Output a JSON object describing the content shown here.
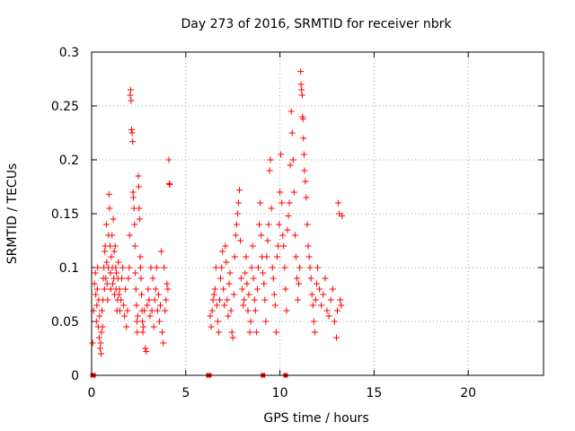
{
  "chart_data": {
    "type": "scatter",
    "title": "Day 273 of 2016, SRMTID for receiver nbrk",
    "xlabel": "GPS time / hours",
    "ylabel": "SRMTID / TECUs",
    "xlim": [
      0,
      24
    ],
    "ylim": [
      0,
      0.3
    ],
    "xticks": [
      0,
      5,
      10,
      15,
      20
    ],
    "xtick_labels": [
      "0",
      "5",
      "10",
      "15",
      "20"
    ],
    "yticks": [
      0,
      0.05,
      0.1,
      0.15,
      0.2,
      0.25,
      0.3
    ],
    "ytick_labels": [
      "0",
      "0.05",
      "0.1",
      "0.15",
      "0.2",
      "0.25",
      "0.3"
    ],
    "grid": true,
    "marker_color": "#ff0000",
    "series": [
      {
        "name": "SRMTID",
        "marker": "plus",
        "points": [
          [
            0.05,
            0.03
          ],
          [
            0.1,
            0.06
          ],
          [
            0.15,
            0.085
          ],
          [
            0.2,
            0.095
          ],
          [
            0.22,
            0.075
          ],
          [
            0.25,
            0.05
          ],
          [
            0.28,
            0.065
          ],
          [
            0.3,
            0.08
          ],
          [
            0.32,
            0.1
          ],
          [
            0.35,
            0.045
          ],
          [
            0.38,
            0.07
          ],
          [
            0.4,
            0.035
          ],
          [
            0.42,
            0.055
          ],
          [
            0.45,
            0.025
          ],
          [
            0.48,
            0.03
          ],
          [
            0.5,
            0.02
          ],
          [
            0.52,
            0.04
          ],
          [
            0.55,
            0.06
          ],
          [
            0.58,
            0.045
          ],
          [
            0.6,
            0.07
          ],
          [
            0.62,
            0.09
          ],
          [
            0.65,
            0.1
          ],
          [
            0.68,
            0.08
          ],
          [
            0.7,
            0.115
          ],
          [
            0.72,
            0.12
          ],
          [
            0.75,
            0.09
          ],
          [
            0.78,
            0.14
          ],
          [
            0.8,
            0.105
          ],
          [
            0.82,
            0.085
          ],
          [
            0.85,
            0.07
          ],
          [
            0.88,
            0.1
          ],
          [
            0.9,
            0.13
          ],
          [
            0.92,
            0.168
          ],
          [
            0.95,
            0.155
          ],
          [
            0.98,
            0.12
          ],
          [
            1.0,
            0.095
          ],
          [
            1.02,
            0.08
          ],
          [
            1.05,
            0.11
          ],
          [
            1.08,
            0.13
          ],
          [
            1.1,
            0.1
          ],
          [
            1.12,
            0.085
          ],
          [
            1.15,
            0.145
          ],
          [
            1.18,
            0.09
          ],
          [
            1.2,
            0.115
          ],
          [
            1.22,
            0.075
          ],
          [
            1.25,
            0.12
          ],
          [
            1.28,
            0.1
          ],
          [
            1.3,
            0.08
          ],
          [
            1.32,
            0.095
          ],
          [
            1.35,
            0.06
          ],
          [
            1.38,
            0.07
          ],
          [
            1.4,
            0.09
          ],
          [
            1.42,
            0.105
          ],
          [
            1.45,
            0.075
          ],
          [
            1.48,
            0.08
          ],
          [
            1.5,
            0.06
          ],
          [
            1.55,
            0.07
          ],
          [
            1.6,
            0.09
          ],
          [
            1.65,
            0.1
          ],
          [
            1.7,
            0.065
          ],
          [
            1.75,
            0.055
          ],
          [
            1.8,
            0.08
          ],
          [
            1.85,
            0.045
          ],
          [
            1.9,
            0.06
          ],
          [
            1.95,
            0.09
          ],
          [
            2.0,
            0.1
          ],
          [
            2.02,
            0.13
          ],
          [
            2.05,
            0.26
          ],
          [
            2.07,
            0.265
          ],
          [
            2.1,
            0.255
          ],
          [
            2.12,
            0.228
          ],
          [
            2.15,
            0.225
          ],
          [
            2.18,
            0.217
          ],
          [
            2.2,
            0.17
          ],
          [
            2.22,
            0.165
          ],
          [
            2.25,
            0.155
          ],
          [
            2.28,
            0.14
          ],
          [
            2.3,
            0.12
          ],
          [
            2.32,
            0.095
          ],
          [
            2.35,
            0.08
          ],
          [
            2.38,
            0.065
          ],
          [
            2.4,
            0.05
          ],
          [
            2.42,
            0.04
          ],
          [
            2.45,
            0.055
          ],
          [
            2.48,
            0.185
          ],
          [
            2.5,
            0.175
          ],
          [
            2.52,
            0.155
          ],
          [
            2.55,
            0.145
          ],
          [
            2.58,
            0.11
          ],
          [
            2.6,
            0.1
          ],
          [
            2.62,
            0.09
          ],
          [
            2.65,
            0.075
          ],
          [
            2.68,
            0.06
          ],
          [
            2.7,
            0.05
          ],
          [
            2.72,
            0.04
          ],
          [
            2.75,
            0.045
          ],
          [
            2.8,
            0.06
          ],
          [
            2.85,
            0.025
          ],
          [
            2.9,
            0.022
          ],
          [
            2.95,
            0.065
          ],
          [
            3.0,
            0.08
          ],
          [
            3.05,
            0.07
          ],
          [
            3.1,
            0.055
          ],
          [
            3.15,
            0.1
          ],
          [
            3.2,
            0.06
          ],
          [
            3.25,
            0.09
          ],
          [
            3.3,
            0.045
          ],
          [
            3.35,
            0.07
          ],
          [
            3.4,
            0.08
          ],
          [
            3.45,
            0.1
          ],
          [
            3.5,
            0.06
          ],
          [
            3.55,
            0.075
          ],
          [
            3.6,
            0.05
          ],
          [
            3.65,
            0.065
          ],
          [
            3.7,
            0.115
          ],
          [
            3.75,
            0.04
          ],
          [
            3.8,
            0.03
          ],
          [
            3.85,
            0.1
          ],
          [
            3.9,
            0.06
          ],
          [
            3.95,
            0.07
          ],
          [
            4.0,
            0.085
          ],
          [
            4.05,
            0.08
          ],
          [
            4.1,
            0.2
          ],
          [
            4.12,
            0.178
          ],
          [
            4.15,
            0.177
          ],
          [
            6.3,
            0.055
          ],
          [
            6.35,
            0.045
          ],
          [
            6.4,
            0.06
          ],
          [
            6.45,
            0.07
          ],
          [
            6.5,
            0.075
          ],
          [
            6.55,
            0.08
          ],
          [
            6.6,
            0.1
          ],
          [
            6.65,
            0.065
          ],
          [
            6.7,
            0.05
          ],
          [
            6.75,
            0.04
          ],
          [
            6.8,
            0.07
          ],
          [
            6.85,
            0.09
          ],
          [
            6.9,
            0.1
          ],
          [
            6.95,
            0.115
          ],
          [
            7.0,
            0.08
          ],
          [
            7.05,
            0.065
          ],
          [
            7.1,
            0.12
          ],
          [
            7.15,
            0.105
          ],
          [
            7.2,
            0.07
          ],
          [
            7.25,
            0.055
          ],
          [
            7.3,
            0.085
          ],
          [
            7.35,
            0.095
          ],
          [
            7.4,
            0.06
          ],
          [
            7.45,
            0.04
          ],
          [
            7.5,
            0.035
          ],
          [
            7.55,
            0.075
          ],
          [
            7.6,
            0.11
          ],
          [
            7.65,
            0.13
          ],
          [
            7.7,
            0.14
          ],
          [
            7.75,
            0.15
          ],
          [
            7.8,
            0.16
          ],
          [
            7.85,
            0.172
          ],
          [
            7.9,
            0.125
          ],
          [
            7.95,
            0.09
          ],
          [
            8.0,
            0.08
          ],
          [
            8.05,
            0.065
          ],
          [
            8.1,
            0.07
          ],
          [
            8.15,
            0.095
          ],
          [
            8.2,
            0.11
          ],
          [
            8.25,
            0.085
          ],
          [
            8.3,
            0.06
          ],
          [
            8.35,
            0.075
          ],
          [
            8.4,
            0.04
          ],
          [
            8.45,
            0.05
          ],
          [
            8.5,
            0.1
          ],
          [
            8.55,
            0.12
          ],
          [
            8.6,
            0.09
          ],
          [
            8.65,
            0.07
          ],
          [
            8.7,
            0.06
          ],
          [
            8.75,
            0.04
          ],
          [
            8.8,
            0.08
          ],
          [
            8.85,
            0.1
          ],
          [
            8.9,
            0.14
          ],
          [
            8.95,
            0.16
          ],
          [
            9.0,
            0.13
          ],
          [
            9.05,
            0.11
          ],
          [
            9.1,
            0.095
          ],
          [
            9.15,
            0.085
          ],
          [
            9.2,
            0.07
          ],
          [
            9.25,
            0.05
          ],
          [
            9.3,
            0.11
          ],
          [
            9.35,
            0.125
          ],
          [
            9.4,
            0.14
          ],
          [
            9.45,
            0.19
          ],
          [
            9.5,
            0.2
          ],
          [
            9.55,
            0.155
          ],
          [
            9.6,
            0.1
          ],
          [
            9.65,
            0.09
          ],
          [
            9.7,
            0.075
          ],
          [
            9.75,
            0.065
          ],
          [
            9.8,
            0.04
          ],
          [
            9.85,
            0.11
          ],
          [
            9.9,
            0.12
          ],
          [
            9.95,
            0.14
          ],
          [
            10.0,
            0.17
          ],
          [
            10.05,
            0.205
          ],
          [
            10.1,
            0.16
          ],
          [
            10.15,
            0.13
          ],
          [
            10.2,
            0.12
          ],
          [
            10.25,
            0.1
          ],
          [
            10.3,
            0.08
          ],
          [
            10.35,
            0.06
          ],
          [
            10.4,
            0.135
          ],
          [
            10.45,
            0.148
          ],
          [
            10.5,
            0.16
          ],
          [
            10.55,
            0.195
          ],
          [
            10.6,
            0.245
          ],
          [
            10.65,
            0.225
          ],
          [
            10.7,
            0.2
          ],
          [
            10.75,
            0.17
          ],
          [
            10.8,
            0.13
          ],
          [
            10.85,
            0.11
          ],
          [
            10.9,
            0.09
          ],
          [
            10.95,
            0.07
          ],
          [
            11.0,
            0.085
          ],
          [
            11.05,
            0.1
          ],
          [
            11.1,
            0.282
          ],
          [
            11.12,
            0.27
          ],
          [
            11.15,
            0.265
          ],
          [
            11.18,
            0.26
          ],
          [
            11.2,
            0.24
          ],
          [
            11.22,
            0.238
          ],
          [
            11.25,
            0.22
          ],
          [
            11.28,
            0.205
          ],
          [
            11.3,
            0.19
          ],
          [
            11.35,
            0.18
          ],
          [
            11.4,
            0.165
          ],
          [
            11.45,
            0.14
          ],
          [
            11.5,
            0.12
          ],
          [
            11.55,
            0.11
          ],
          [
            11.6,
            0.1
          ],
          [
            11.65,
            0.09
          ],
          [
            11.7,
            0.075
          ],
          [
            11.75,
            0.065
          ],
          [
            11.8,
            0.05
          ],
          [
            11.85,
            0.04
          ],
          [
            11.9,
            0.07
          ],
          [
            11.95,
            0.085
          ],
          [
            12.0,
            0.1
          ],
          [
            12.1,
            0.08
          ],
          [
            12.2,
            0.065
          ],
          [
            12.3,
            0.075
          ],
          [
            12.4,
            0.09
          ],
          [
            12.5,
            0.06
          ],
          [
            12.6,
            0.055
          ],
          [
            12.7,
            0.07
          ],
          [
            12.8,
            0.08
          ],
          [
            12.9,
            0.05
          ],
          [
            13.0,
            0.035
          ],
          [
            13.05,
            0.06
          ],
          [
            13.1,
            0.16
          ],
          [
            13.15,
            0.15
          ],
          [
            13.2,
            0.07
          ],
          [
            13.25,
            0.065
          ],
          [
            13.3,
            0.148
          ],
          [
            0.05,
            0.0
          ],
          [
            0.1,
            0.0
          ],
          [
            6.2,
            0.0
          ],
          [
            6.25,
            0.0
          ],
          [
            9.1,
            0.0
          ],
          [
            10.3,
            0.0
          ]
        ]
      }
    ]
  }
}
